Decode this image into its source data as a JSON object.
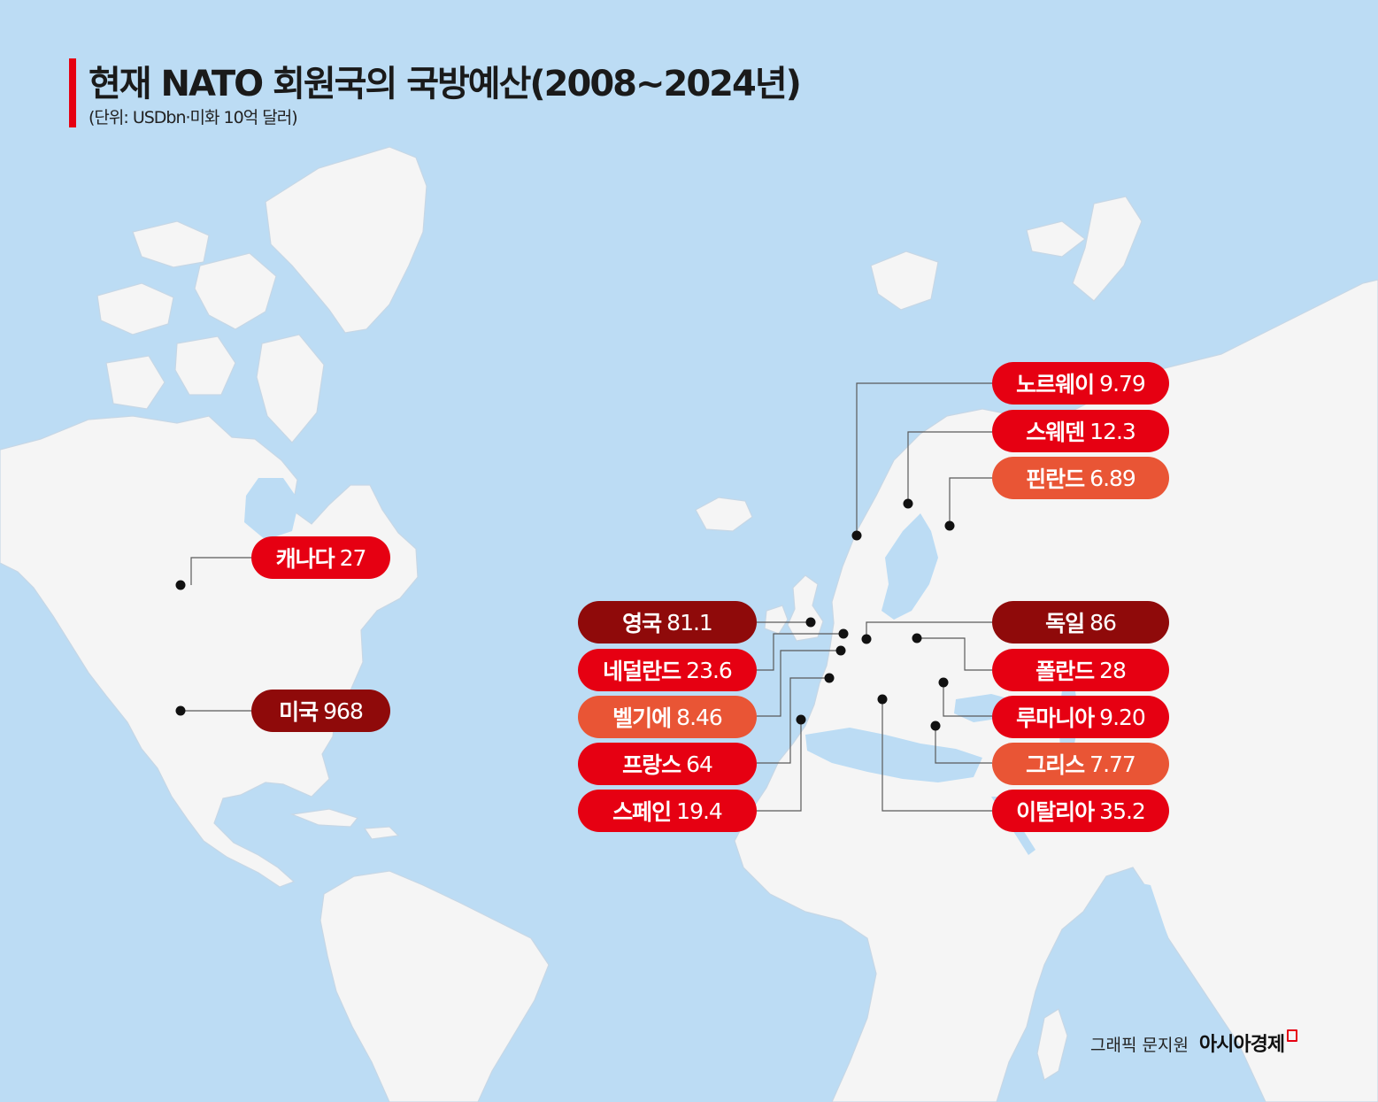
{
  "title": "현재 NATO 회원국의 국방예산(2008~2024년)",
  "subtitle": "(단위: USDbn·미화 10억 달러)",
  "colors": {
    "ocean": "#bcdcf4",
    "land": "#f5f5f5",
    "border": "#c6d7e6",
    "bright_red": "#e60012",
    "dark_red": "#8f0a0a",
    "orange": "#e95535",
    "accent": "#e60012"
  },
  "countries": [
    {
      "id": "canada",
      "name": "캐나다",
      "value": "27",
      "tone": "bright_red"
    },
    {
      "id": "usa",
      "name": "미국",
      "value": "968",
      "tone": "dark_red"
    },
    {
      "id": "norway",
      "name": "노르웨이",
      "value": "9.79",
      "tone": "bright_red"
    },
    {
      "id": "sweden",
      "name": "스웨덴",
      "value": "12.3",
      "tone": "bright_red"
    },
    {
      "id": "finland",
      "name": "핀란드",
      "value": "6.89",
      "tone": "orange"
    },
    {
      "id": "uk",
      "name": "영국",
      "value": "81.1",
      "tone": "dark_red"
    },
    {
      "id": "netherlands",
      "name": "네덜란드",
      "value": "23.6",
      "tone": "bright_red"
    },
    {
      "id": "belgium",
      "name": "벨기에",
      "value": "8.46",
      "tone": "orange"
    },
    {
      "id": "france",
      "name": "프랑스",
      "value": "64",
      "tone": "bright_red"
    },
    {
      "id": "spain",
      "name": "스페인",
      "value": "19.4",
      "tone": "bright_red"
    },
    {
      "id": "germany",
      "name": "독일",
      "value": "86",
      "tone": "dark_red"
    },
    {
      "id": "poland",
      "name": "폴란드",
      "value": "28",
      "tone": "bright_red"
    },
    {
      "id": "romania",
      "name": "루마니아",
      "value": "9.20",
      "tone": "bright_red"
    },
    {
      "id": "greece",
      "name": "그리스",
      "value": "7.77",
      "tone": "orange"
    },
    {
      "id": "italy",
      "name": "이탈리아",
      "value": "35.2",
      "tone": "bright_red"
    }
  ],
  "credit": {
    "designer": "그래픽 문지원",
    "publisher": "아시아경제"
  }
}
